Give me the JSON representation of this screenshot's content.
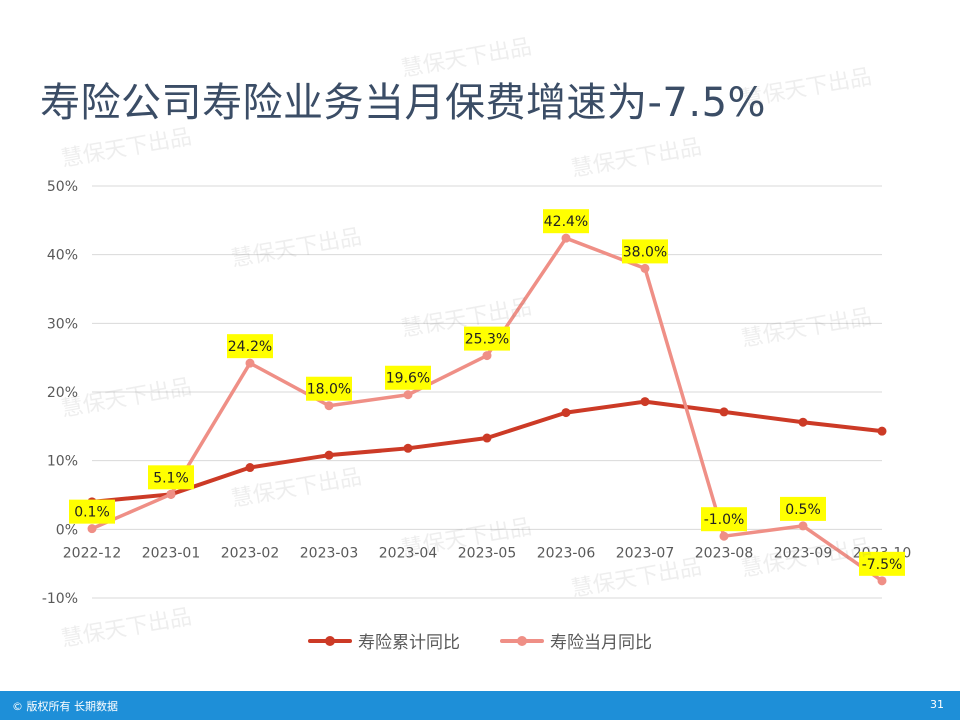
{
  "title": "寿险公司寿险业务当月保费增速为-7.5%",
  "watermark": "慧保天下出品",
  "footer": {
    "copyright": "© 版权所有 长期数据",
    "page_number": "31"
  },
  "colors": {
    "cumulative": "#cc3a26",
    "monthly": "#ef8f86",
    "label_bg": "#ffff00",
    "grid": "#d9d9d9",
    "footer": "#1e8fd8"
  },
  "chart_data": {
    "type": "line",
    "categories": [
      "2022-12",
      "2023-01",
      "2023-02",
      "2023-03",
      "2023-04",
      "2023-05",
      "2023-06",
      "2023-07",
      "2023-08",
      "2023-09",
      "2023-10"
    ],
    "ylim": [
      -10,
      50
    ],
    "yticks": [
      "-10%",
      "0%",
      "10%",
      "20%",
      "30%",
      "40%",
      "50%"
    ],
    "grid": true,
    "legend_position": "bottom",
    "series": [
      {
        "name": "寿险累计同比",
        "values": [
          4.0,
          5.1,
          9.0,
          10.8,
          11.8,
          13.3,
          17.0,
          18.6,
          17.1,
          15.6,
          14.3
        ],
        "labels": null
      },
      {
        "name": "寿险当月同比",
        "values": [
          0.1,
          5.1,
          24.2,
          18.0,
          19.6,
          25.3,
          42.4,
          38.0,
          -1.0,
          0.5,
          -7.5
        ],
        "labels": [
          "0.1%",
          "5.1%",
          "24.2%",
          "18.0%",
          "19.6%",
          "25.3%",
          "42.4%",
          "38.0%",
          "-1.0%",
          "0.5%",
          "-7.5%"
        ]
      }
    ]
  }
}
